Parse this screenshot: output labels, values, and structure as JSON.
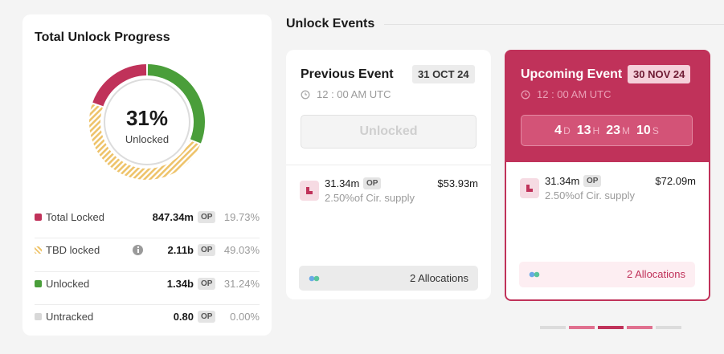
{
  "progress": {
    "title": "Total Unlock Progress",
    "center_value": "31%",
    "center_label": "Unlocked",
    "items": [
      {
        "label": "Total Locked",
        "amount": "847.34m",
        "token": "OP",
        "share": {
          "value": 19.73,
          "label": "19.73%"
        },
        "color": "#c0325a",
        "hatched": false
      },
      {
        "label": "TBD locked",
        "amount": "2.11b",
        "token": "OP",
        "share": {
          "value": 49.03,
          "label": "49.03%"
        },
        "color": "#eec36a",
        "hatched": true
      },
      {
        "label": "Unlocked",
        "amount": "1.34b",
        "token": "OP",
        "share": {
          "value": 31.24,
          "label": "31.24%"
        },
        "color": "#4a9e3a",
        "hatched": false
      },
      {
        "label": "Untracked",
        "amount": "0.80",
        "token": "OP",
        "share": {
          "value": 0,
          "label": "0.00%"
        },
        "color": "#d8d8d8",
        "hatched": false
      }
    ]
  },
  "events": {
    "title": "Unlock Events",
    "previous": {
      "title": "Previous Event",
      "date": "31 OCT 24",
      "time": "12 : 00 AM UTC",
      "status": "Unlocked",
      "amount": "31.34m",
      "token": "OP",
      "supply": "2.50%of Cir. supply",
      "usd": "$53.93m",
      "allocations": "2 Allocations"
    },
    "upcoming": {
      "title": "Upcoming Event",
      "date": "30 NOV 24",
      "time": "12 : 00 AM UTC",
      "countdown": [
        {
          "value": "4",
          "unit": "D"
        },
        {
          "value": "13",
          "unit": "H"
        },
        {
          "value": "23",
          "unit": "M"
        },
        {
          "value": "10",
          "unit": "S"
        }
      ],
      "amount": "31.34m",
      "token": "OP",
      "supply": "2.50%of Cir. supply",
      "usd": "$72.09m",
      "allocations": "2 Allocations"
    }
  }
}
